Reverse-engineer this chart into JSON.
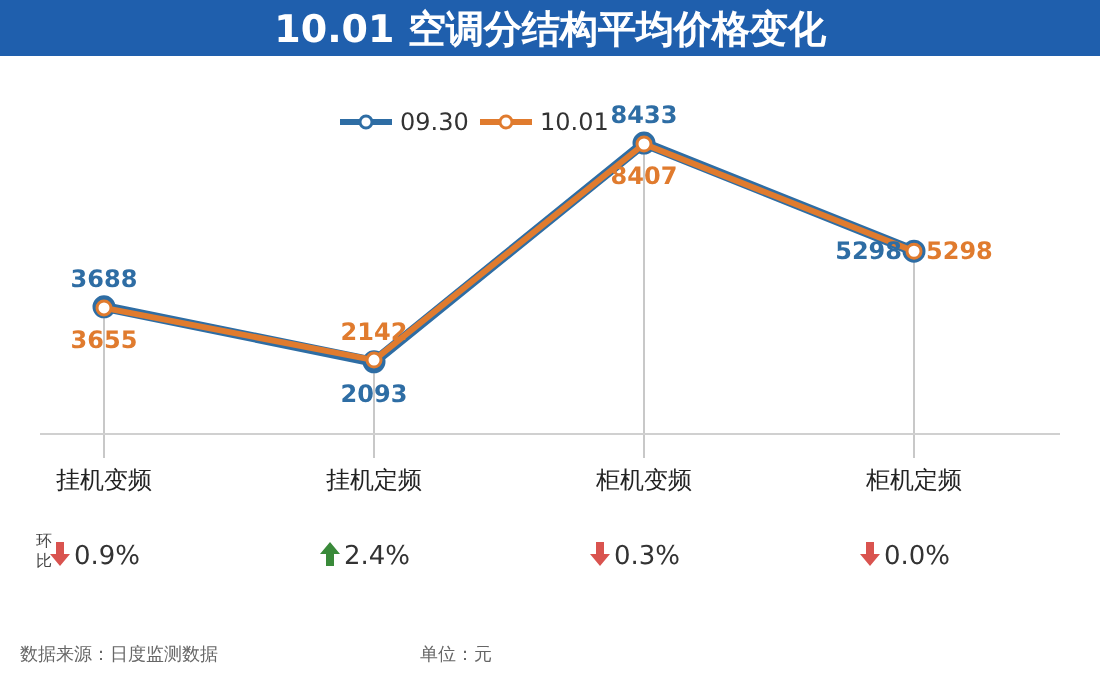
{
  "chart_data": {
    "type": "line",
    "title": "10.01 空调分结构平均价格变化",
    "categories": [
      "挂机变频",
      "挂机定频",
      "柜机变频",
      "柜机定频"
    ],
    "series": [
      {
        "name": "09.30",
        "color": "#2e6da4",
        "values": [
          3688,
          2093,
          8433,
          5298
        ]
      },
      {
        "name": "10.01",
        "color": "#e07b2e",
        "values": [
          3655,
          2142,
          8407,
          5298
        ]
      }
    ],
    "data_labels": true,
    "marker": "circle",
    "legend": "top",
    "grid": "x",
    "annotations": [
      "环比",
      "0.9%",
      "2.4%",
      "0.3%",
      "0.0%",
      "数据来源：日度监测数据",
      "单位：元"
    ]
  }
}
